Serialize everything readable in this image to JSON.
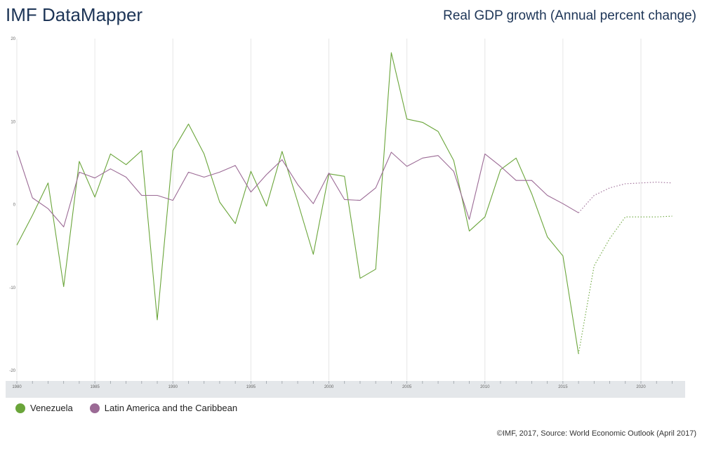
{
  "header": {
    "app_title": "IMF DataMapper"
  },
  "source_note": "©IMF, 2017, Source: World Economic Outlook (April 2017)",
  "colors": {
    "venezuela": "#6aa53a",
    "latam": "#9b6a95",
    "grid": "#e6e6e6",
    "axis_band": "#e4e7ea"
  },
  "chart_data": {
    "type": "line",
    "title": "Real GDP growth (Annual percent change)",
    "xlabel": "",
    "ylabel": "",
    "xlim": [
      1980,
      2022
    ],
    "ylim": [
      -20,
      20
    ],
    "x_ticks": [
      "1980",
      "1985",
      "1990",
      "1995",
      "2000",
      "2005",
      "2010",
      "2015",
      "2020"
    ],
    "y_ticks": [
      "20",
      "10",
      "0",
      "-10",
      "-20"
    ],
    "last_actual_year": 2016,
    "x": [
      1980,
      1981,
      1982,
      1983,
      1984,
      1985,
      1986,
      1987,
      1988,
      1989,
      1990,
      1991,
      1992,
      1993,
      1994,
      1995,
      1996,
      1997,
      1998,
      1999,
      2000,
      2001,
      2002,
      2003,
      2004,
      2005,
      2006,
      2007,
      2008,
      2009,
      2010,
      2011,
      2012,
      2013,
      2014,
      2015,
      2016,
      2017,
      2018,
      2019,
      2020,
      2021,
      2022
    ],
    "series": [
      {
        "name": "Venezuela",
        "color": "#6aa53a",
        "values": [
          -4.9,
          -1.3,
          2.6,
          -9.9,
          5.2,
          0.9,
          6.1,
          4.8,
          6.5,
          -13.9,
          6.5,
          9.7,
          6.1,
          0.3,
          -2.3,
          4.0,
          -0.2,
          6.4,
          0.3,
          -6.0,
          3.7,
          3.4,
          -8.9,
          -7.8,
          18.3,
          10.3,
          9.9,
          8.8,
          5.3,
          -3.2,
          -1.5,
          4.2,
          5.6,
          1.3,
          -3.9,
          -6.2,
          -18.0,
          -7.4,
          -4.1,
          -1.5,
          -1.5,
          -1.5,
          -1.4
        ]
      },
      {
        "name": "Latin America and the Caribbean",
        "color": "#9b6a95",
        "values": [
          6.5,
          0.8,
          -0.5,
          -2.7,
          3.9,
          3.2,
          4.3,
          3.3,
          1.1,
          1.1,
          0.5,
          3.9,
          3.3,
          3.9,
          4.7,
          1.5,
          3.6,
          5.4,
          2.4,
          0.1,
          3.8,
          0.6,
          0.5,
          2.0,
          6.3,
          4.6,
          5.6,
          5.9,
          4.0,
          -1.8,
          6.1,
          4.6,
          2.9,
          2.9,
          1.1,
          0.1,
          -1.0,
          1.1,
          2.0,
          2.5,
          2.6,
          2.7,
          2.6
        ]
      }
    ]
  }
}
